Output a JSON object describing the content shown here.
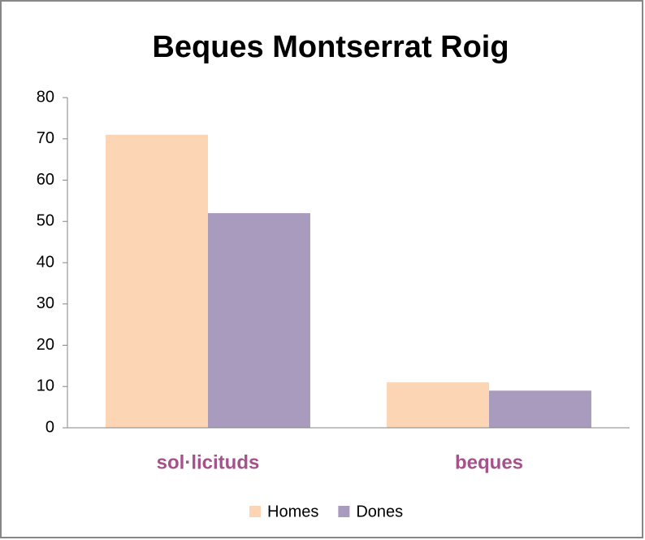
{
  "chart_data": {
    "type": "bar",
    "title": "Beques Montserrat Roig",
    "categories": [
      "sol·licituds",
      "beques"
    ],
    "series": [
      {
        "name": "Homes",
        "color": "#fcd5b4",
        "values": [
          71,
          11
        ]
      },
      {
        "name": "Dones",
        "color": "#a99bbd",
        "values": [
          52,
          9
        ]
      }
    ],
    "ylim": [
      0,
      80
    ],
    "yticks": [
      0,
      10,
      20,
      30,
      40,
      50,
      60,
      70,
      80
    ],
    "grid": false,
    "legend": "bottom"
  }
}
